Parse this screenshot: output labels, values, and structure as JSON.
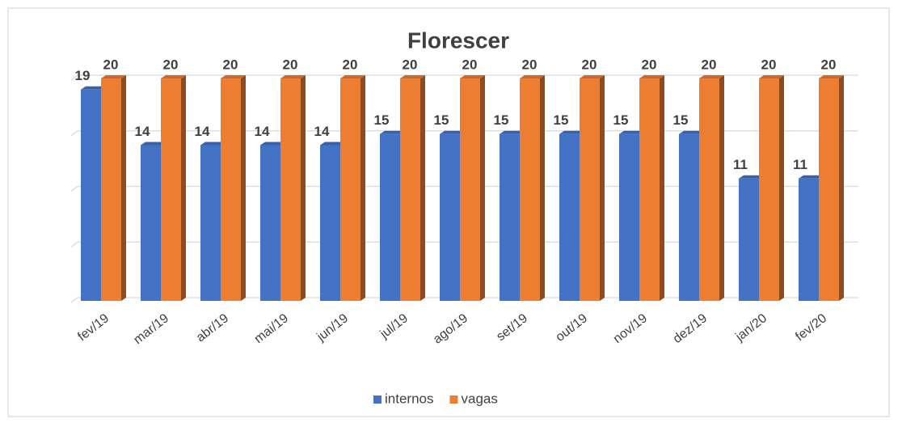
{
  "chart_data": {
    "type": "bar",
    "title": "Florescer",
    "categories": [
      "fev/19",
      "mar/19",
      "abr/19",
      "mai/19",
      "jun/19",
      "jul/19",
      "ago/19",
      "set/19",
      "out/19",
      "nov/19",
      "dez/19",
      "jan/20",
      "fev/20"
    ],
    "series": [
      {
        "name": "internos",
        "color": "#4472c4",
        "values": [
          19,
          14,
          14,
          14,
          14,
          15,
          15,
          15,
          15,
          15,
          15,
          11,
          11
        ]
      },
      {
        "name": "vagas",
        "color": "#ed7d31",
        "values": [
          20,
          20,
          20,
          20,
          20,
          20,
          20,
          20,
          20,
          20,
          20,
          20,
          20
        ]
      }
    ],
    "ylim": [
      0,
      20
    ],
    "yticks": [
      0,
      5,
      10,
      15,
      20
    ],
    "grid": true,
    "legend": "bottom"
  }
}
